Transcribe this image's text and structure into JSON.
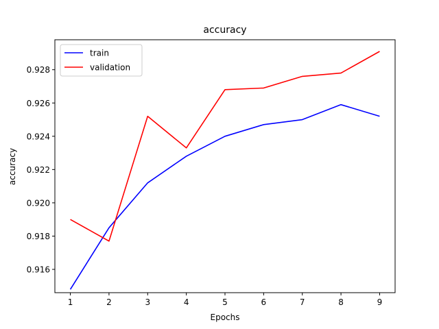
{
  "chart_data": {
    "type": "line",
    "title": "accuracy",
    "xlabel": "Epochs",
    "ylabel": "accuracy",
    "x": [
      1,
      2,
      3,
      4,
      5,
      6,
      7,
      8,
      9
    ],
    "xticks": [
      "1",
      "2",
      "3",
      "4",
      "5",
      "6",
      "7",
      "8",
      "9"
    ],
    "yticks": [
      "0.916",
      "0.918",
      "0.920",
      "0.922",
      "0.924",
      "0.926",
      "0.928"
    ],
    "ytick_values": [
      0.916,
      0.918,
      0.92,
      0.922,
      0.924,
      0.926,
      0.928
    ],
    "xlim": [
      0.6,
      9.4
    ],
    "ylim": [
      0.9146,
      0.9298
    ],
    "grid": false,
    "legend_position": "top-left",
    "series": [
      {
        "name": "train",
        "color": "#0000ff",
        "values": [
          0.9148,
          0.9185,
          0.9212,
          0.9228,
          0.924,
          0.9247,
          0.925,
          0.9259,
          0.9252
        ]
      },
      {
        "name": "validation",
        "color": "#ff0000",
        "values": [
          0.919,
          0.9177,
          0.9252,
          0.9233,
          0.9268,
          0.9269,
          0.9276,
          0.9278,
          0.9291
        ]
      }
    ]
  }
}
